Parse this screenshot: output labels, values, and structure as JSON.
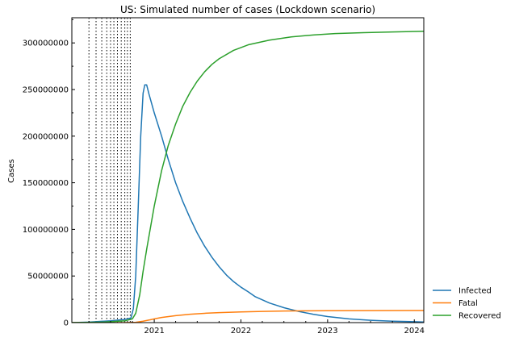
{
  "chart_data": {
    "type": "line",
    "title": "US: Simulated number of cases (Lockdown scenario)",
    "xlabel": "",
    "ylabel": "Cases",
    "xlim": [
      "2020-01-20",
      "2024-02-10"
    ],
    "ylim": [
      0,
      327000000
    ],
    "x_ticks": [
      {
        "date": "2021-01-01",
        "label": "2021"
      },
      {
        "date": "2022-01-01",
        "label": "2022"
      },
      {
        "date": "2023-01-01",
        "label": "2023"
      },
      {
        "date": "2024-01-01",
        "label": "2024"
      }
    ],
    "y_ticks": [
      0,
      50000000,
      100000000,
      150000000,
      200000000,
      250000000,
      300000000
    ],
    "y_tick_labels": [
      "0",
      "50000000",
      "100000000",
      "150000000",
      "200000000",
      "250000000",
      "300000000"
    ],
    "grid": false,
    "legend_position": "outside-bottom-right",
    "change_dates": [
      "2020-04-01",
      "2020-05-01",
      "2020-05-25",
      "2020-06-15",
      "2020-07-01",
      "2020-07-15",
      "2020-07-30",
      "2020-08-15",
      "2020-08-30",
      "2020-09-10",
      "2020-09-22"
    ],
    "series": [
      {
        "name": "Infected",
        "color": "#1f77b4",
        "points": [
          [
            "2020-01-20",
            0
          ],
          [
            "2020-04-01",
            500000
          ],
          [
            "2020-07-01",
            2000000
          ],
          [
            "2020-09-01",
            3500000
          ],
          [
            "2020-09-25",
            5000000
          ],
          [
            "2020-10-05",
            15000000
          ],
          [
            "2020-10-15",
            50000000
          ],
          [
            "2020-10-25",
            120000000
          ],
          [
            "2020-11-05",
            200000000
          ],
          [
            "2020-11-15",
            246000000
          ],
          [
            "2020-11-22",
            255000000
          ],
          [
            "2020-11-30",
            255000000
          ],
          [
            "2020-12-10",
            245000000
          ],
          [
            "2021-01-01",
            225000000
          ],
          [
            "2021-02-01",
            200000000
          ],
          [
            "2021-03-01",
            175000000
          ],
          [
            "2021-04-01",
            150000000
          ],
          [
            "2021-05-01",
            130000000
          ],
          [
            "2021-06-01",
            112000000
          ],
          [
            "2021-07-01",
            96000000
          ],
          [
            "2021-08-01",
            82000000
          ],
          [
            "2021-09-01",
            70000000
          ],
          [
            "2021-10-01",
            60000000
          ],
          [
            "2021-11-01",
            51000000
          ],
          [
            "2021-12-01",
            44000000
          ],
          [
            "2022-01-01",
            38000000
          ],
          [
            "2022-02-01",
            33000000
          ],
          [
            "2022-03-01",
            28000000
          ],
          [
            "2022-05-01",
            21000000
          ],
          [
            "2022-07-01",
            16000000
          ],
          [
            "2022-09-01",
            12000000
          ],
          [
            "2022-11-01",
            9000000
          ],
          [
            "2023-01-01",
            6500000
          ],
          [
            "2023-04-01",
            4000000
          ],
          [
            "2023-07-01",
            2500000
          ],
          [
            "2023-10-01",
            1500000
          ],
          [
            "2024-02-10",
            700000
          ]
        ]
      },
      {
        "name": "Fatal",
        "color": "#ff7f0e",
        "points": [
          [
            "2020-01-20",
            0
          ],
          [
            "2020-09-01",
            50000
          ],
          [
            "2020-10-15",
            300000
          ],
          [
            "2020-11-15",
            1500000
          ],
          [
            "2020-12-15",
            3000000
          ],
          [
            "2021-01-01",
            4000000
          ],
          [
            "2021-02-01",
            5500000
          ],
          [
            "2021-04-01",
            7500000
          ],
          [
            "2021-06-01",
            9000000
          ],
          [
            "2021-08-01",
            10000000
          ],
          [
            "2021-10-01",
            10700000
          ],
          [
            "2022-01-01",
            11500000
          ],
          [
            "2022-04-01",
            12000000
          ],
          [
            "2022-07-01",
            12400000
          ],
          [
            "2023-01-01",
            12800000
          ],
          [
            "2024-02-10",
            13000000
          ]
        ]
      },
      {
        "name": "Recovered",
        "color": "#2ca02c",
        "points": [
          [
            "2020-01-20",
            0
          ],
          [
            "2020-06-01",
            500000
          ],
          [
            "2020-09-01",
            2000000
          ],
          [
            "2020-10-01",
            4000000
          ],
          [
            "2020-10-15",
            10000000
          ],
          [
            "2020-11-01",
            30000000
          ],
          [
            "2020-11-15",
            55000000
          ],
          [
            "2020-12-01",
            80000000
          ],
          [
            "2021-01-01",
            125000000
          ],
          [
            "2021-02-01",
            163000000
          ],
          [
            "2021-03-01",
            190000000
          ],
          [
            "2021-04-01",
            213000000
          ],
          [
            "2021-05-01",
            232000000
          ],
          [
            "2021-06-01",
            247000000
          ],
          [
            "2021-07-01",
            259000000
          ],
          [
            "2021-08-01",
            269000000
          ],
          [
            "2021-09-01",
            277000000
          ],
          [
            "2021-10-01",
            283000000
          ],
          [
            "2021-12-01",
            292000000
          ],
          [
            "2022-02-01",
            298000000
          ],
          [
            "2022-05-01",
            303000000
          ],
          [
            "2022-08-01",
            306500000
          ],
          [
            "2022-11-01",
            308500000
          ],
          [
            "2023-02-01",
            310000000
          ],
          [
            "2023-06-01",
            311000000
          ],
          [
            "2023-10-01",
            311800000
          ],
          [
            "2024-02-10",
            312500000
          ]
        ]
      }
    ]
  }
}
